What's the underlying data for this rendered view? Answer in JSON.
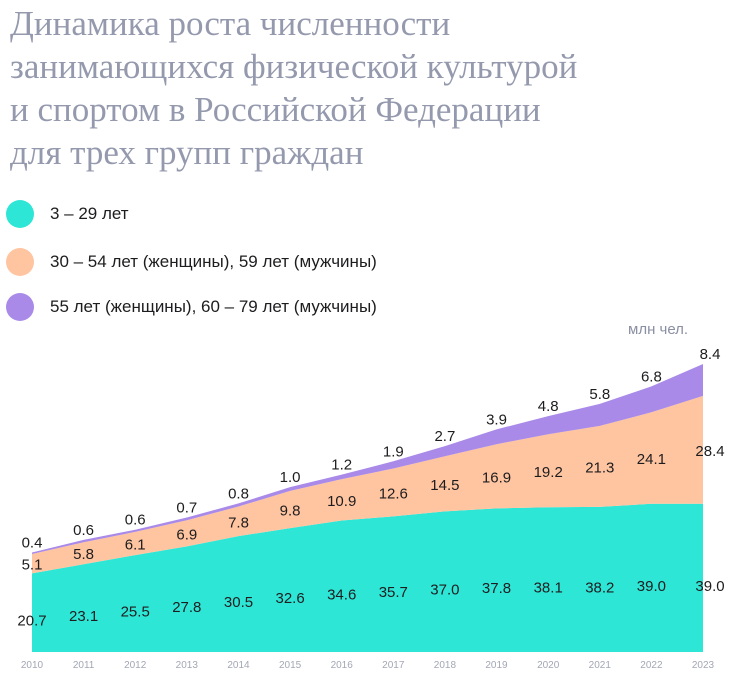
{
  "chart_data": {
    "type": "area",
    "stacked": true,
    "title_lines": [
      "Динамика роста численности",
      "занимающихся физической культурой",
      "и спортом в Российской Федерации",
      "для трех групп граждан"
    ],
    "unit": "млн чел.",
    "x": [
      "2010",
      "2011",
      "2012",
      "2013",
      "2014",
      "2015",
      "2016",
      "2017",
      "2018",
      "2019",
      "2020",
      "2021",
      "2022",
      "2023"
    ],
    "series": [
      {
        "name": "3 – 29 лет",
        "color": "#2ee6d6",
        "values": [
          20.7,
          23.1,
          25.5,
          27.8,
          30.5,
          32.6,
          34.6,
          35.7,
          37.0,
          37.8,
          38.1,
          38.2,
          39.0,
          39.0
        ],
        "labels": [
          "20.7",
          "23.1",
          "25.5",
          "27.8",
          "30.5",
          "32.6",
          "34.6",
          "35.7",
          "37.0",
          "37.8",
          "38.1",
          "38.2",
          "39.0",
          "39.0"
        ]
      },
      {
        "name": "30 – 54 лет (женщины), 59 лет (мужчины)",
        "color": "#ffc4a0",
        "values": [
          5.1,
          5.8,
          6.1,
          6.9,
          7.8,
          9.8,
          10.9,
          12.6,
          14.5,
          16.9,
          19.2,
          21.3,
          24.1,
          28.4
        ],
        "labels": [
          "5.1",
          "5.8",
          "6.1",
          "6.9",
          "7.8",
          "9.8",
          "10.9",
          "12.6",
          "14.5",
          "16.9",
          "19.2",
          "21.3",
          "24.1",
          "28.4"
        ]
      },
      {
        "name": "55 лет (женщины), 60 – 79 лет (мужчины)",
        "color": "#a98ae8",
        "values": [
          0.4,
          0.6,
          0.6,
          0.7,
          0.8,
          1.0,
          1.2,
          1.9,
          2.7,
          3.9,
          4.8,
          5.8,
          6.8,
          8.4
        ],
        "labels": [
          "0.4",
          "0.6",
          "0.6",
          "0.7",
          "0.8",
          "1.0",
          "1.2",
          "1.9",
          "2.7",
          "3.9",
          "4.8",
          "5.8",
          "6.8",
          "8.4"
        ]
      }
    ],
    "ylim": [
      0,
      75.8
    ],
    "legend_position": "top-left"
  }
}
